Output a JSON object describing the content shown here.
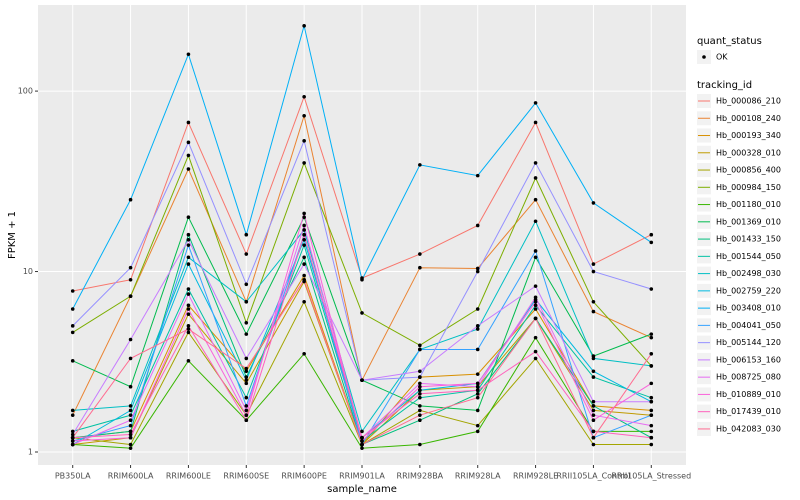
{
  "chart_data": {
    "type": "line",
    "x_label": "sample_name",
    "y_label": "FPKM + 1",
    "y_log_scale": true,
    "grid": true,
    "ylim": [
      0.847,
      300
    ],
    "yticks": [
      1,
      10,
      100
    ],
    "point_color": "#000000",
    "status_legend": {
      "title": "quant_status",
      "labels": [
        "OK"
      ]
    },
    "legend_title": "tracking_id",
    "categories": [
      "PB350LA",
      "RRIM600LA",
      "RRIM600LE",
      "RRIM600SE",
      "RRIM600PE",
      "RRIM901LA",
      "RRIM928BA",
      "RRIM928LA",
      "RRIM928LE",
      "RRII105LA_Control",
      "RRII105LA_Stressed"
    ],
    "series": [
      {
        "name": "Hb_000086_210",
        "color": "#F8766D",
        "values": [
          7.8,
          9.0,
          67,
          12.5,
          93,
          9.2,
          12.5,
          18,
          67,
          11,
          16
        ]
      },
      {
        "name": "Hb_000108_240",
        "color": "#EA8331",
        "values": [
          1.6,
          7.3,
          37,
          6.8,
          73,
          2.5,
          10.5,
          10.4,
          25,
          6.0,
          4.3
        ]
      },
      {
        "name": "Hb_000193_340",
        "color": "#D89000",
        "values": [
          1.2,
          1.3,
          6.5,
          2.8,
          9.5,
          1.1,
          2.6,
          2.7,
          6.2,
          1.8,
          1.7
        ]
      },
      {
        "name": "Hb_000328_010",
        "color": "#C09B00",
        "values": [
          1.1,
          1.2,
          5.8,
          2.4,
          8.8,
          1.1,
          2.2,
          2.3,
          5.5,
          1.7,
          1.6
        ]
      },
      {
        "name": "Hb_000856_400",
        "color": "#A3A500",
        "values": [
          1.2,
          1.1,
          4.6,
          1.6,
          6.8,
          1.1,
          1.7,
          1.4,
          3.3,
          1.1,
          1.1
        ]
      },
      {
        "name": "Hb_000984_150",
        "color": "#7CAE00",
        "values": [
          4.6,
          7.3,
          44,
          5.2,
          40,
          5.9,
          3.9,
          6.2,
          33,
          6.8,
          3.0
        ]
      },
      {
        "name": "Hb_001180_010",
        "color": "#39B600",
        "values": [
          1.1,
          1.05,
          3.2,
          1.5,
          3.5,
          1.05,
          1.1,
          1.3,
          4.3,
          1.3,
          1.3
        ]
      },
      {
        "name": "Hb_001369_010",
        "color": "#00BB4E",
        "values": [
          3.2,
          2.3,
          20,
          4.5,
          20,
          2.5,
          1.8,
          1.7,
          12,
          3.4,
          4.5
        ]
      },
      {
        "name": "Hb_001433_150",
        "color": "#00BF7D",
        "values": [
          1.2,
          1.3,
          16,
          2.6,
          12,
          1.1,
          1.5,
          2.1,
          5.5,
          1.8,
          1.2
        ]
      },
      {
        "name": "Hb_001544_050",
        "color": "#00C1A3",
        "values": [
          1.3,
          1.6,
          8.0,
          2.0,
          14,
          1.15,
          2.0,
          2.2,
          6.5,
          2.6,
          2.0
        ]
      },
      {
        "name": "Hb_002498_030",
        "color": "#00BFC4",
        "values": [
          1.7,
          1.8,
          12,
          6.8,
          17,
          1.3,
          3.7,
          4.8,
          19,
          3.3,
          3.0
        ]
      },
      {
        "name": "Hb_002759_220",
        "color": "#00BAE0",
        "values": [
          1.1,
          1.7,
          11,
          2.5,
          15,
          1.2,
          2.2,
          2.4,
          7.0,
          2.8,
          1.9
        ]
      },
      {
        "name": "Hb_003408_010",
        "color": "#00B0F6",
        "values": [
          6.2,
          25,
          160,
          16,
          230,
          9.0,
          39,
          34,
          86,
          24,
          14.5
        ]
      },
      {
        "name": "Hb_004041_050",
        "color": "#35A2FF",
        "values": [
          1.15,
          1.4,
          14,
          1.8,
          16,
          1.1,
          3.7,
          3.7,
          13,
          1.2,
          1.6
        ]
      },
      {
        "name": "Hb_005144_120",
        "color": "#9590FF",
        "values": [
          5.0,
          10.5,
          52,
          8.5,
          53,
          2.5,
          2.6,
          10,
          40,
          10,
          8.0
        ]
      },
      {
        "name": "Hb_006153_160",
        "color": "#C77CFF",
        "values": [
          1.25,
          4.2,
          15,
          3.3,
          11,
          2.5,
          2.8,
          5.0,
          8.3,
          1.9,
          1.9
        ]
      },
      {
        "name": "Hb_008725_080",
        "color": "#E76BF3",
        "values": [
          1.1,
          1.5,
          7.5,
          1.7,
          18,
          1.2,
          2.4,
          2.3,
          7.2,
          1.6,
          1.4
        ]
      },
      {
        "name": "Hb_010889_010",
        "color": "#FA62DB",
        "values": [
          1.15,
          1.2,
          6.2,
          1.6,
          21,
          1.15,
          2.3,
          2.4,
          6.8,
          1.5,
          2.4
        ]
      },
      {
        "name": "Hb_017439_010",
        "color": "#FF62BC",
        "values": [
          1.2,
          1.25,
          5.0,
          1.5,
          16,
          1.2,
          2.1,
          2.2,
          3.6,
          1.3,
          1.2
        ]
      },
      {
        "name": "Hb_042083_030",
        "color": "#FF6C91",
        "values": [
          1.2,
          3.3,
          4.8,
          2.9,
          9.0,
          1.1,
          1.6,
          2.0,
          5.5,
          1.2,
          3.5
        ]
      }
    ]
  }
}
